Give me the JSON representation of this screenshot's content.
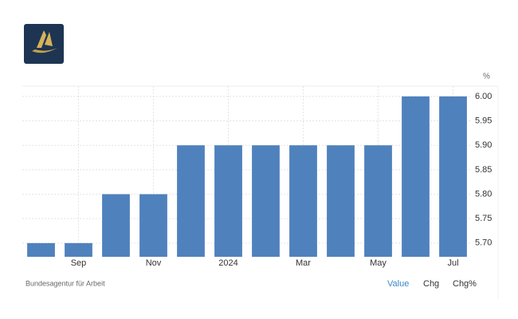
{
  "chart_data": {
    "type": "bar",
    "unit": "%",
    "source": "Bundesagentur für Arbeit",
    "buttons": [
      "Value",
      "Chg",
      "Chg%"
    ],
    "categories": [
      null,
      "Sep",
      null,
      "Nov",
      null,
      "2024",
      null,
      "Mar",
      null,
      "May",
      null,
      "Jul"
    ],
    "values": [
      5.7,
      5.7,
      5.8,
      5.8,
      5.9,
      5.9,
      5.9,
      5.9,
      5.9,
      5.9,
      6.0,
      6.0
    ],
    "color": "#4f81bd",
    "ylim": [
      5.672,
      6.021
    ],
    "yticks": [
      {
        "value": 5.7,
        "label": "5.70"
      },
      {
        "value": 5.75,
        "label": "5.75"
      },
      {
        "value": 5.8,
        "label": "5.80"
      },
      {
        "value": 5.85,
        "label": "5.85"
      },
      {
        "value": 5.9,
        "label": "5.90"
      },
      {
        "value": 5.95,
        "label": "5.95"
      },
      {
        "value": 6.0,
        "label": "6.00"
      }
    ],
    "grid": true
  }
}
